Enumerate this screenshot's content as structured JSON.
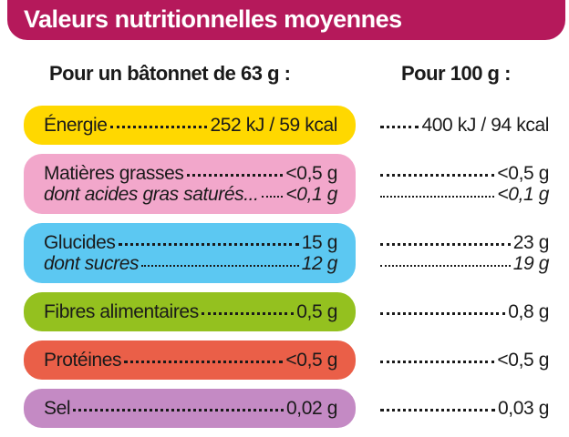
{
  "header": {
    "title": "Valeurs nutritionnelles moyennes"
  },
  "columns": [
    "Pour un bâtonnet de 63 g  :",
    "Pour 100 g :"
  ],
  "groups": [
    {
      "color": "#ffd800",
      "lines": [
        {
          "label": "Énergie",
          "portion": "252 kJ / 59 kcal",
          "per100": "400 kJ / 94 kcal"
        }
      ]
    },
    {
      "color": "#f2a7cb",
      "lines": [
        {
          "label": "Matières grasses",
          "portion": "<0,5 g",
          "per100": "<0,5 g"
        },
        {
          "label": "dont acides gras saturés...",
          "portion": "<0,1 g",
          "per100": "<0,1 g"
        }
      ]
    },
    {
      "color": "#5cc8f2",
      "lines": [
        {
          "label": "Glucides",
          "portion": "15 g",
          "per100": "23 g"
        },
        {
          "label": "dont sucres",
          "portion": "12 g",
          "per100": "19 g"
        }
      ]
    },
    {
      "color": "#94c11f",
      "lines": [
        {
          "label": "Fibres alimentaires",
          "portion": "0,5 g",
          "per100": "0,8 g"
        }
      ]
    },
    {
      "color": "#ea5f48",
      "lines": [
        {
          "label": "Protéines",
          "portion": "<0,5 g",
          "per100": "<0,5 g"
        }
      ]
    },
    {
      "color": "#c48ac4",
      "lines": [
        {
          "label": "Sel",
          "portion": "0,02 g",
          "per100": "0,03 g"
        }
      ]
    }
  ]
}
